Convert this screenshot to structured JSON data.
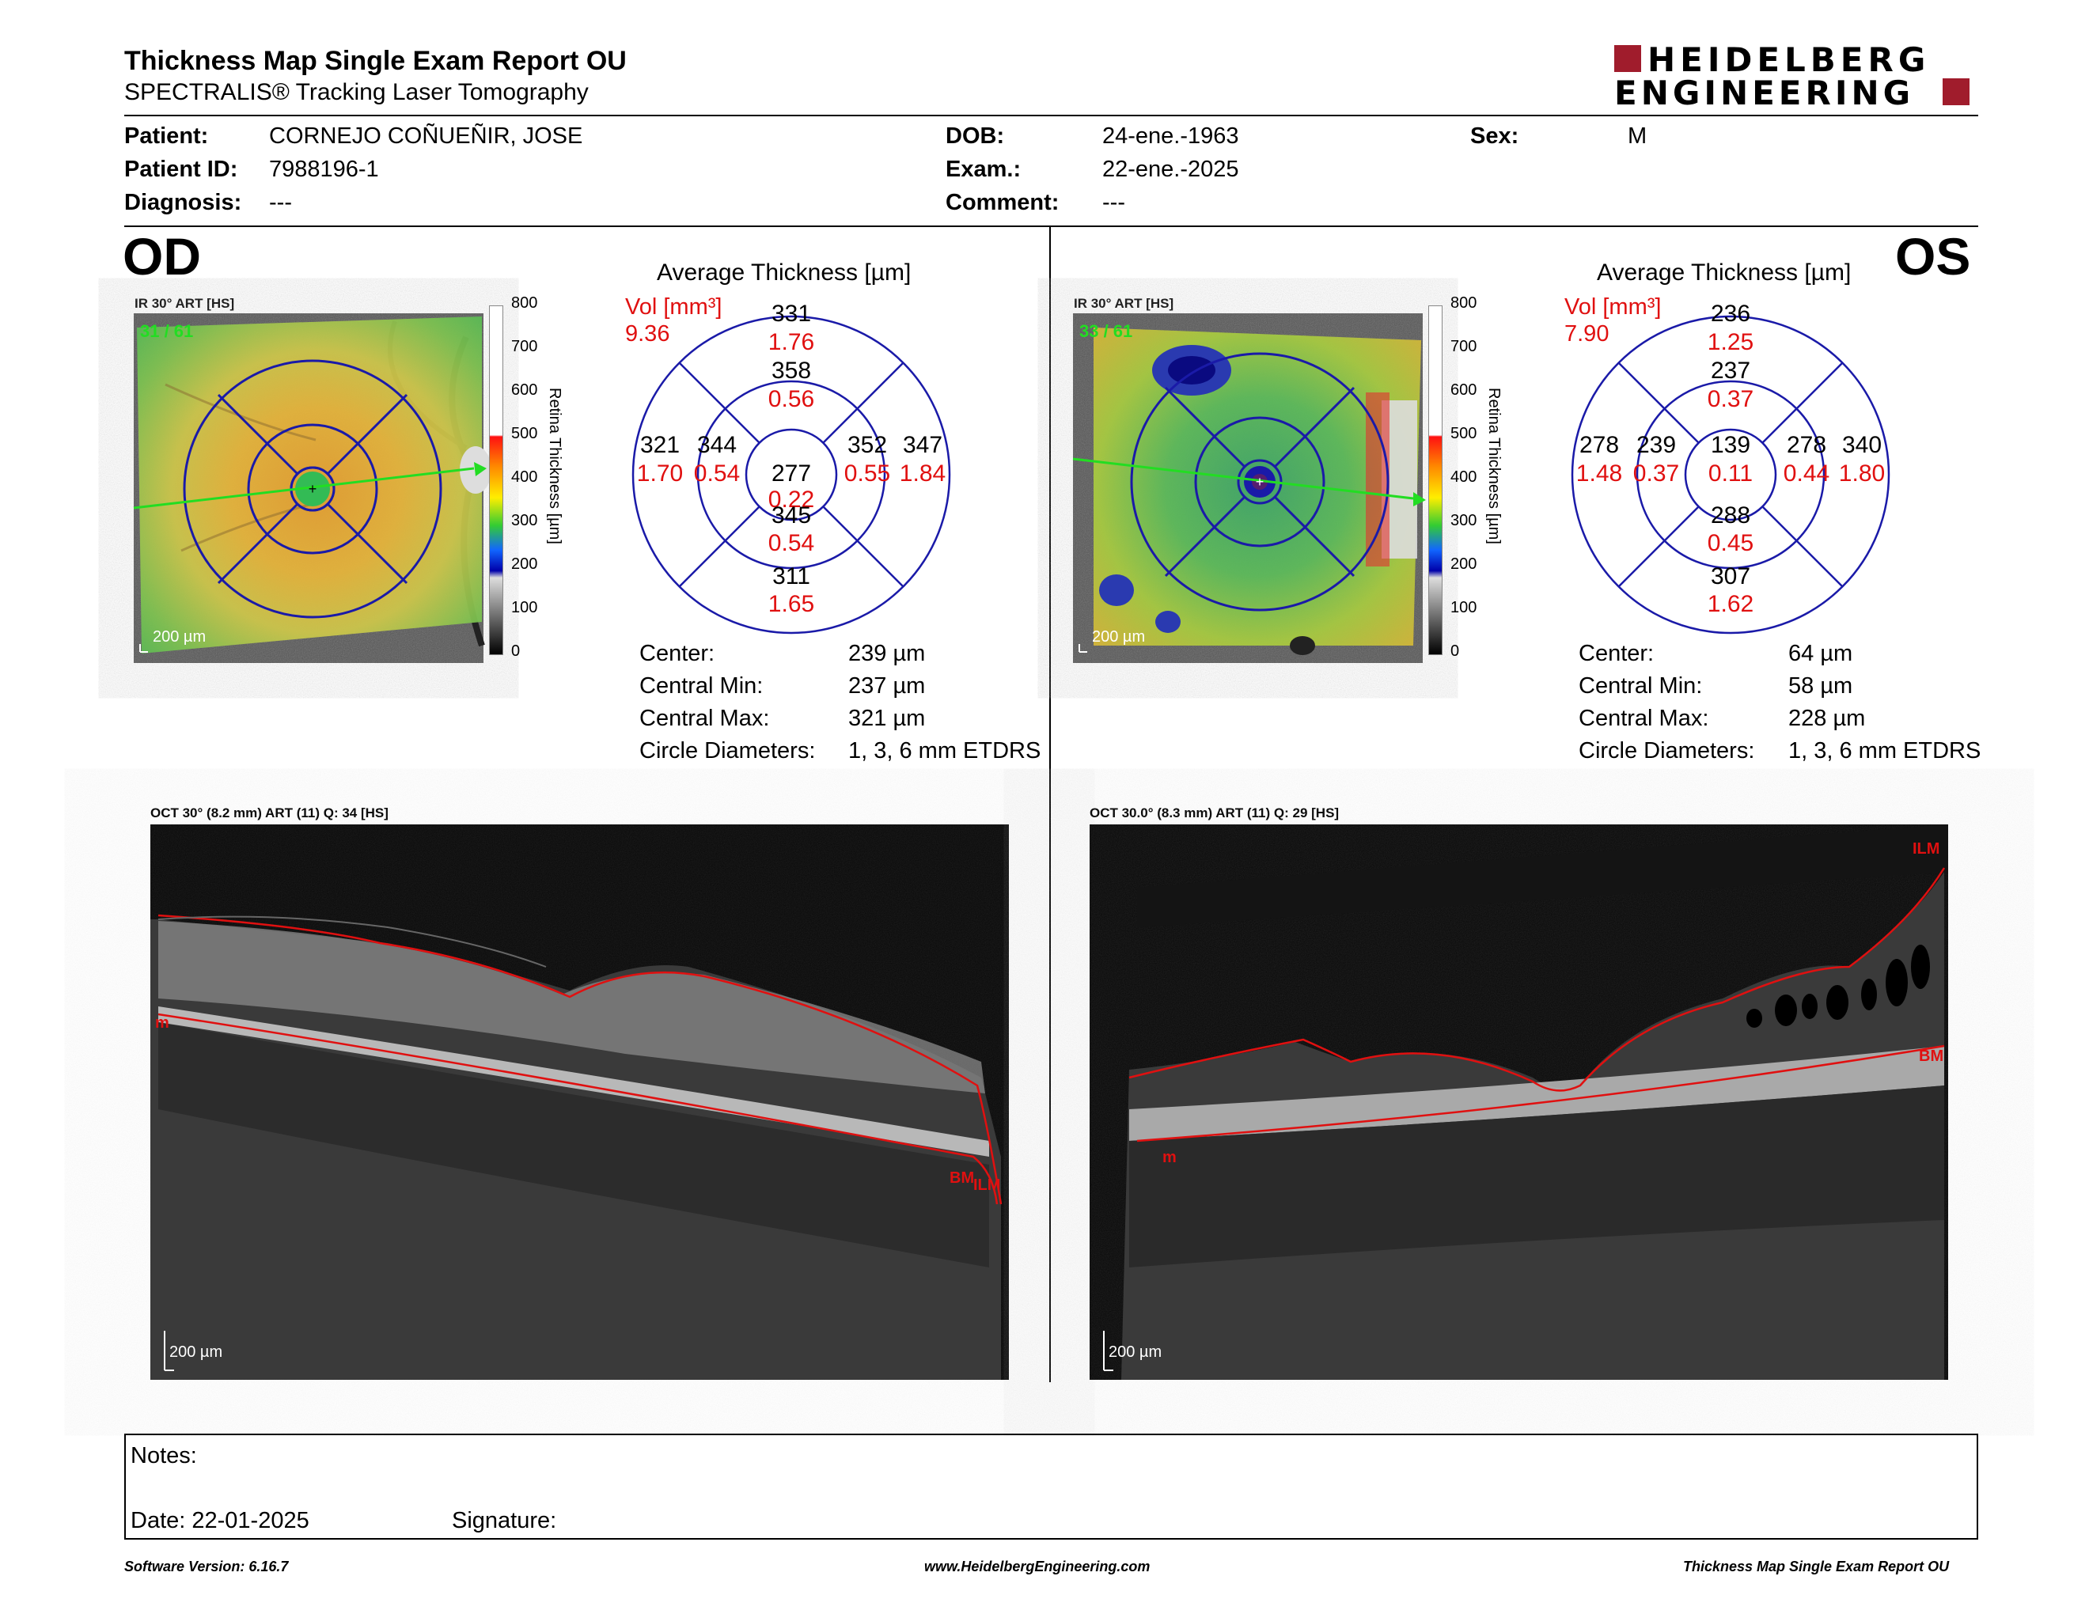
{
  "header": {
    "title": "Thickness Map Single Exam Report OU",
    "subtitle": "SPECTRALIS® Tracking Laser Tomography",
    "logo_line1": "HEIDELBERG",
    "logo_line2": "ENGINEERING"
  },
  "patient": {
    "patient_label": "Patient:",
    "patient_name": "CORNEJO COÑUEÑIR, JOSE",
    "id_label": "Patient ID:",
    "id_value": "7988196-1",
    "diagnosis_label": "Diagnosis:",
    "diagnosis_value": "---",
    "dob_label": "DOB:",
    "dob_value": "24-ene.-1963",
    "exam_label": "Exam.:",
    "exam_value": "22-ene.-2025",
    "comment_label": "Comment:",
    "comment_value": "---",
    "sex_label": "Sex:",
    "sex_value": "M"
  },
  "od": {
    "eye_label": "OD",
    "ir_caption": "IR 30° ART [HS]",
    "ir_frames": "31 / 61",
    "scale_label": "200 µm",
    "avg_title": "Average Thickness [µm]",
    "vol_label": "Vol [mm³]",
    "vol_total": "9.36",
    "etdrs": {
      "center_t": "277",
      "center_v": "0.22",
      "inner_sup_t": "358",
      "inner_sup_v": "0.56",
      "inner_inf_t": "345",
      "inner_inf_v": "0.54",
      "inner_left_t": "344",
      "inner_left_v": "0.54",
      "inner_right_t": "352",
      "inner_right_v": "0.55",
      "outer_sup_t": "331",
      "outer_sup_v": "1.76",
      "outer_inf_t": "311",
      "outer_inf_v": "1.65",
      "outer_left_t": "321",
      "outer_left_v": "1.70",
      "outer_right_t": "347",
      "outer_right_v": "1.84"
    },
    "stats": {
      "center_label": "Center:",
      "center_value": "239 µm",
      "min_label": "Central Min:",
      "min_value": "237 µm",
      "max_label": "Central Max:",
      "max_value": "321 µm",
      "diam_label": "Circle Diameters:",
      "diam_value": "1, 3, 6 mm ETDRS"
    },
    "oct_caption": "OCT 30° (8.2 mm) ART (11) Q: 34 [HS]",
    "oct_scale": "200 µm",
    "oct_labels": {
      "m": "m",
      "bm": "BM",
      "ilm": "ILM"
    }
  },
  "os": {
    "eye_label": "OS",
    "ir_caption": "IR 30° ART [HS]",
    "ir_frames": "33 / 61",
    "scale_label": "200 µm",
    "avg_title": "Average Thickness [µm]",
    "vol_label": "Vol [mm³]",
    "vol_total": "7.90",
    "etdrs": {
      "center_t": "139",
      "center_v": "0.11",
      "inner_sup_t": "237",
      "inner_sup_v": "0.37",
      "inner_inf_t": "288",
      "inner_inf_v": "0.45",
      "inner_left_t": "239",
      "inner_left_v": "0.37",
      "inner_right_t": "278",
      "inner_right_v": "0.44",
      "outer_sup_t": "236",
      "outer_sup_v": "1.25",
      "outer_inf_t": "307",
      "outer_inf_v": "1.62",
      "outer_left_t": "278",
      "outer_left_v": "1.48",
      "outer_right_t": "340",
      "outer_right_v": "1.80"
    },
    "stats": {
      "center_label": "Center:",
      "center_value": "64 µm",
      "min_label": "Central Min:",
      "min_value": "58 µm",
      "max_label": "Central Max:",
      "max_value": "228 µm",
      "diam_label": "Circle Diameters:",
      "diam_value": "1, 3, 6 mm ETDRS"
    },
    "oct_caption": "OCT 30.0° (8.3 mm) ART (11) Q: 29 [HS]",
    "oct_scale": "200 µm",
    "oct_labels": {
      "ilm": "ILM",
      "bm": "BM",
      "m": "m"
    }
  },
  "colorbar": {
    "ticks": [
      "800",
      "700",
      "600",
      "500",
      "400",
      "300",
      "200",
      "100",
      "0"
    ],
    "axis_label": "Retina Thickness [µm]"
  },
  "notes": {
    "notes_label": "Notes:",
    "date_label": "Date: 22-01-2025",
    "signature_label": "Signature:"
  },
  "footer": {
    "software": "Software Version: 6.16.7",
    "website": "www.HeidelbergEngineering.com",
    "report_name": "Thickness Map Single Exam Report OU"
  },
  "colors": {
    "rule": "#000000",
    "logo_red": "#a01c2c",
    "volume_red": "#e01010",
    "etdrs_blue": "#1a1aa8",
    "frame_green": "#22dd22"
  }
}
